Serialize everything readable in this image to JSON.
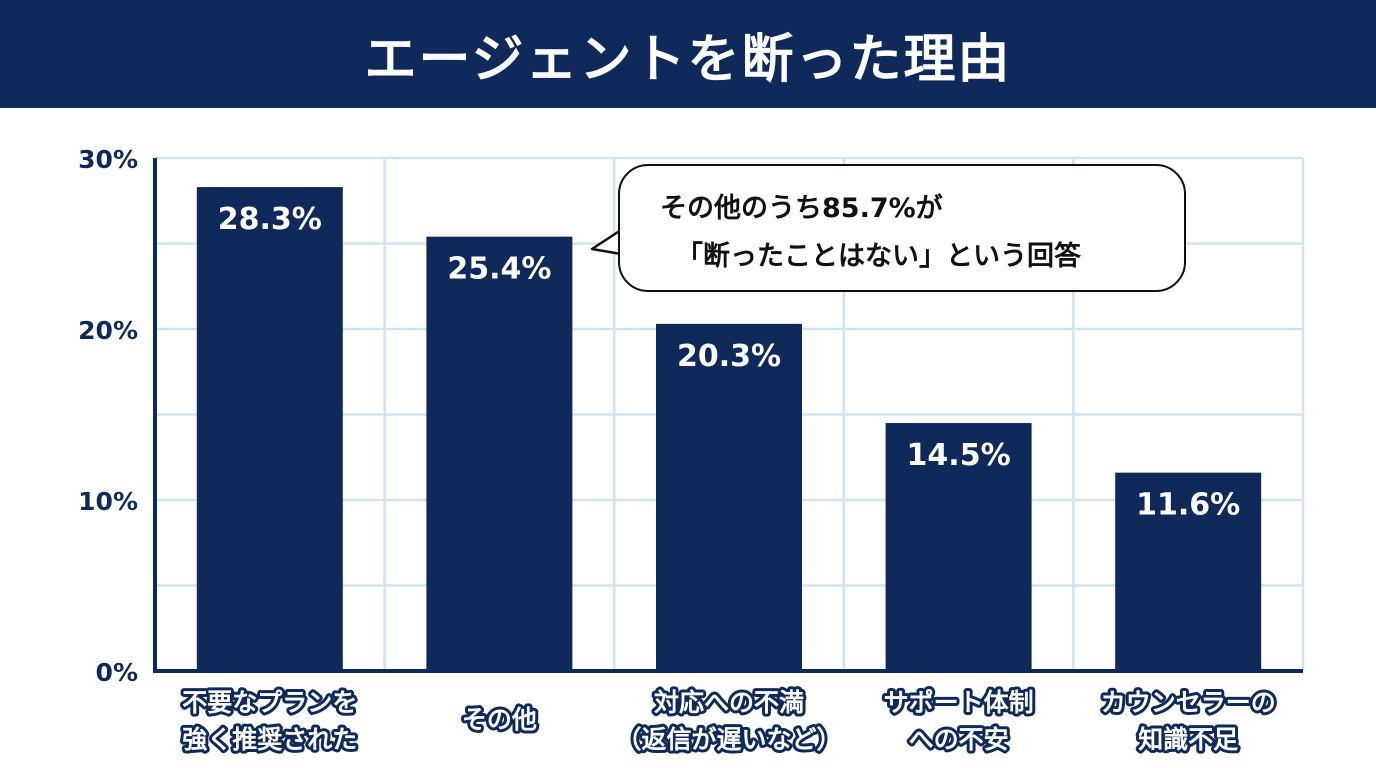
{
  "header": {
    "title": "エージェントを断った理由"
  },
  "callout": {
    "line1": "その他のうち85.7%が",
    "line2": "「断ったことはない」という回答"
  },
  "colors": {
    "bar": "#0f2a5a",
    "header_bg": "#0f2a5a",
    "grid": "#cfe3f3",
    "axis": "#0f2a5a"
  },
  "chart_data": {
    "type": "bar",
    "title": "エージェントを断った理由",
    "categories": [
      [
        "不要なプランを",
        "強く推奨された"
      ],
      [
        "その他"
      ],
      [
        "対応への不満",
        "（返信が遅いなど）"
      ],
      [
        "サポート体制",
        "への不安"
      ],
      [
        "カウンセラーの",
        "知識不足"
      ]
    ],
    "values": [
      28.3,
      25.4,
      20.3,
      14.5,
      11.6
    ],
    "value_labels": [
      "28.3%",
      "25.4%",
      "20.3%",
      "14.5%",
      "11.6%"
    ],
    "yticks": [
      0,
      10,
      20,
      30
    ],
    "ytick_labels": [
      "0%",
      "10%",
      "20%",
      "30%"
    ],
    "ylim": [
      0,
      30
    ],
    "grid": true,
    "xlabel": "",
    "ylabel": ""
  }
}
